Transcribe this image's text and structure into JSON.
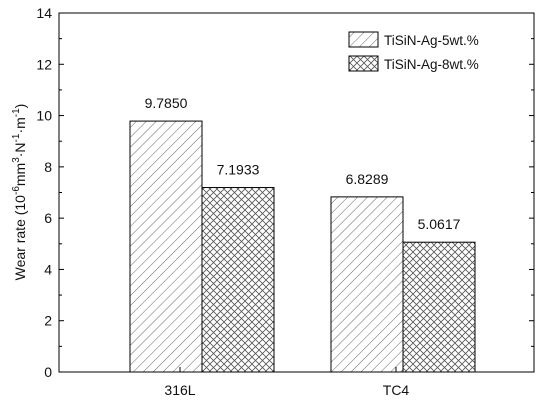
{
  "chart_data": {
    "type": "bar",
    "categories": [
      "316L",
      "TC4"
    ],
    "series": [
      {
        "name": "TiSiN-Ag-5wt.%",
        "values": [
          9.785,
          6.8289
        ],
        "labels": [
          "9.7850",
          "6.8289"
        ]
      },
      {
        "name": "TiSiN-Ag-8wt.%",
        "values": [
          7.1933,
          5.0617
        ],
        "labels": [
          "7.1933",
          "5.0617"
        ]
      }
    ],
    "ylabel": {
      "base": "Wear rate (10",
      "exp1": "-6",
      "mid1": "mm",
      "exp2": "3",
      "mid2": "·N",
      "exp3": "-1",
      "mid3": "·m",
      "exp4": "-1",
      "end": ")"
    },
    "ylim": [
      0,
      14
    ],
    "yticks": [
      0,
      2,
      4,
      6,
      8,
      10,
      12,
      14
    ],
    "grid": false,
    "legend": "top-right",
    "patterns": [
      "diagonal-hatch",
      "cross-hatch"
    ]
  }
}
